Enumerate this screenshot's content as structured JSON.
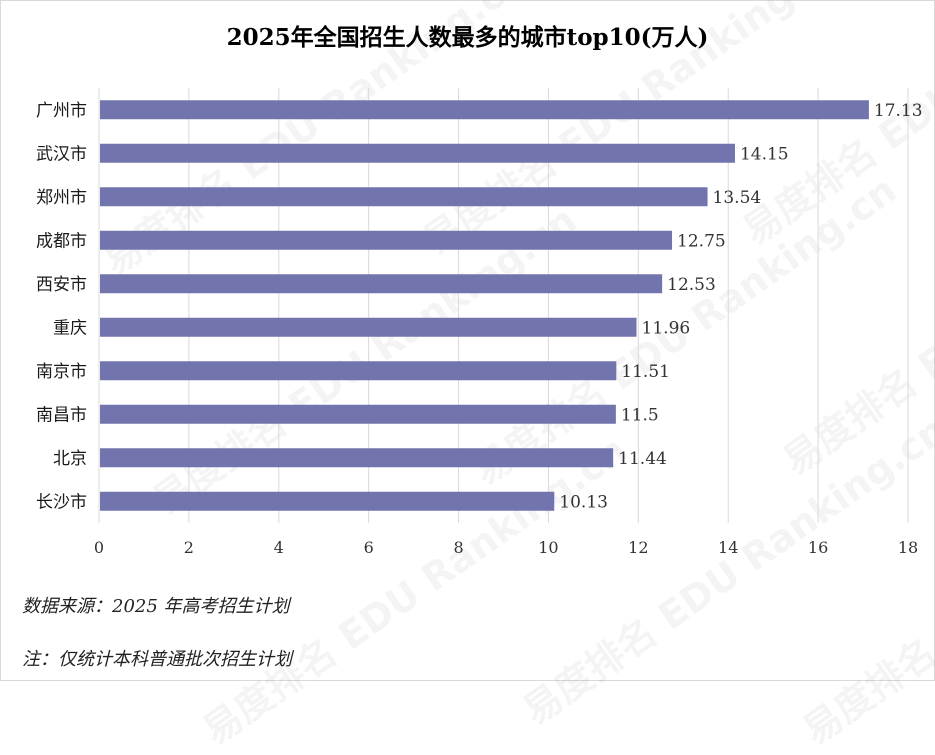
{
  "watermark": "易度排名 EDU Ranking.cn",
  "notes": {
    "source": "数据来源：2025 年高考招生计划",
    "scope": "注：仅统计本科普通批次招生计划"
  },
  "colors": {
    "bar": "#7274ad",
    "grid": "#d9d9d9",
    "text": "#333333"
  },
  "chart_data": {
    "type": "bar",
    "orientation": "horizontal",
    "title": "2025年全国招生人数最多的城市top10(万人)",
    "categories": [
      "广州市",
      "武汉市",
      "郑州市",
      "成都市",
      "西安市",
      "重庆",
      "南京市",
      "南昌市",
      "北京",
      "长沙市"
    ],
    "values": [
      17.13,
      14.15,
      13.54,
      12.75,
      12.53,
      11.96,
      11.51,
      11.5,
      11.44,
      10.13
    ],
    "value_labels": [
      "17.13",
      "14.15",
      "13.54",
      "12.75",
      "12.53",
      "11.96",
      "11.51",
      "11.5",
      "11.44",
      "10.13"
    ],
    "xlim": [
      0,
      18
    ],
    "xticks": [
      "0",
      "2",
      "4",
      "6",
      "8",
      "10",
      "12",
      "14",
      "16",
      "18"
    ],
    "xlabel": "",
    "ylabel": "",
    "grid": "vertical",
    "legend": "none"
  }
}
